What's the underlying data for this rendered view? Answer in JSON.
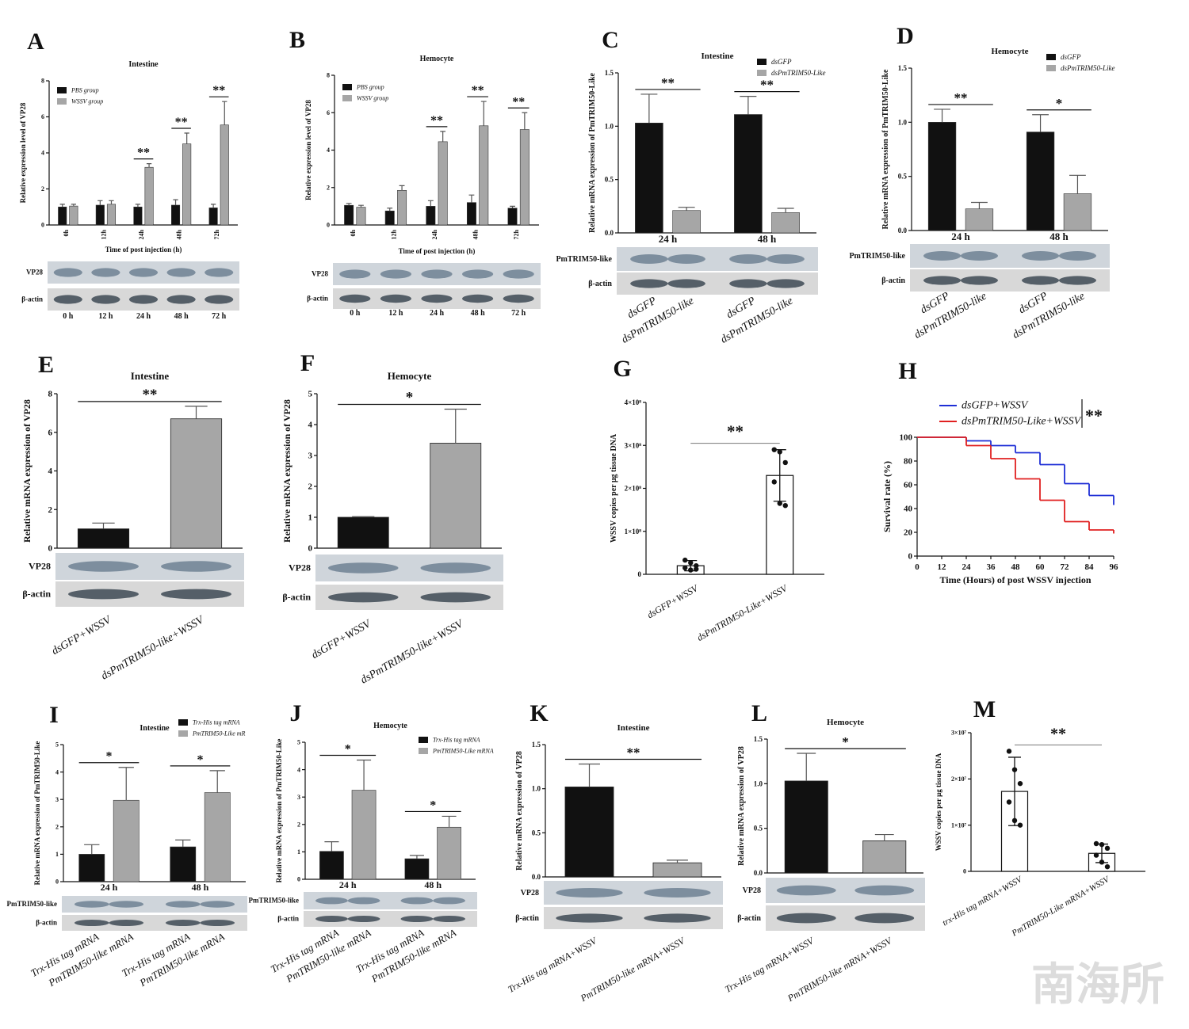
{
  "watermark": "南海所",
  "chart_data": [
    {
      "type": "bar",
      "panel": "A",
      "title": "Intestine",
      "y_label": "Relative expression level of VP28",
      "x_label": "Time of post injection (h)",
      "categories": [
        "0h",
        "12h",
        "24h",
        "48h",
        "72h"
      ],
      "series": [
        {
          "name": "PBS group",
          "color": "#111111",
          "values": [
            1.0,
            1.1,
            1.0,
            1.1,
            0.95
          ],
          "errors": [
            0.15,
            0.25,
            0.15,
            0.3,
            0.2
          ]
        },
        {
          "name": "WSSV group",
          "color": "#a6a6a6",
          "values": [
            1.05,
            1.15,
            3.2,
            4.5,
            5.55
          ],
          "errors": [
            0.1,
            0.2,
            0.2,
            0.6,
            1.3
          ]
        }
      ],
      "significance": [
        null,
        null,
        "**",
        "**",
        "**"
      ],
      "ylim": [
        0,
        8
      ],
      "yticks": [
        0,
        2,
        4,
        6,
        8
      ],
      "blot": {
        "labels": [
          "VP28",
          "β-actin"
        ],
        "lanes": [
          "0 h",
          "12 h",
          "24 h",
          "48 h",
          "72 h"
        ]
      }
    },
    {
      "type": "bar",
      "panel": "B",
      "title": "Hemocyte",
      "y_label": "Relative expression level of VP28",
      "x_label": "Time of post injection (h)",
      "categories": [
        "0h",
        "12h",
        "24h",
        "48h",
        "72h"
      ],
      "series": [
        {
          "name": "PBS group",
          "color": "#111111",
          "values": [
            1.05,
            0.75,
            1.0,
            1.2,
            0.9
          ],
          "errors": [
            0.1,
            0.15,
            0.3,
            0.4,
            0.1
          ]
        },
        {
          "name": "WSSV group",
          "color": "#a6a6a6",
          "values": [
            0.95,
            1.85,
            4.45,
            5.3,
            5.1
          ],
          "errors": [
            0.1,
            0.25,
            0.55,
            1.3,
            0.9
          ]
        }
      ],
      "significance": [
        null,
        null,
        "**",
        "**",
        "**"
      ],
      "ylim": [
        0,
        8
      ],
      "yticks": [
        0,
        2,
        4,
        6,
        8
      ],
      "blot": {
        "labels": [
          "VP28",
          "β-actin"
        ],
        "lanes": [
          "0 h",
          "12 h",
          "24 h",
          "48 h",
          "72 h"
        ]
      }
    },
    {
      "type": "bar",
      "panel": "C",
      "title": "Intestine",
      "y_label": "Relative mRNA expression of PmTRIM50-Like",
      "categories": [
        "24 h",
        "48 h"
      ],
      "series": [
        {
          "name": "dsGFP",
          "color": "#111111",
          "values": [
            1.03,
            1.11
          ],
          "errors": [
            0.27,
            0.17
          ]
        },
        {
          "name": "dsPmTRIM50-Like",
          "color": "#a6a6a6",
          "values": [
            0.21,
            0.19
          ],
          "errors": [
            0.03,
            0.04
          ]
        }
      ],
      "significance": [
        "**",
        "**"
      ],
      "ylim": [
        0,
        1.5
      ],
      "yticks": [
        {
          "value": 0,
          "label": "0.0"
        },
        0.5,
        {
          "value": 1,
          "label": "1.0"
        },
        1.5
      ],
      "blot": {
        "labels": [
          "PmTRIM50-like",
          "β-actin"
        ],
        "lanes": [
          "dsGFP",
          "dsPmTRIM50-like",
          "dsGFP",
          "dsPmTRIM50-like"
        ]
      }
    },
    {
      "type": "bar",
      "panel": "D",
      "title": "Hemocyte",
      "y_label": "Relative mRNA expression of PmTRIM50-Like",
      "categories": [
        "24 h",
        "48 h"
      ],
      "series": [
        {
          "name": "dsGFP",
          "color": "#111111",
          "values": [
            1.0,
            0.91
          ],
          "errors": [
            0.12,
            0.16
          ]
        },
        {
          "name": "dsPmTRIM50-Like",
          "color": "#a6a6a6",
          "values": [
            0.2,
            0.34
          ],
          "errors": [
            0.06,
            0.17
          ]
        }
      ],
      "significance": [
        "**",
        "*"
      ],
      "ylim": [
        0,
        1.5
      ],
      "yticks": [
        {
          "value": 0,
          "label": "0.0"
        },
        0.5,
        {
          "value": 1,
          "label": "1.0"
        },
        1.5
      ],
      "blot": {
        "labels": [
          "PmTRIM50-like",
          "β-actin"
        ],
        "lanes": [
          "dsGFP",
          "dsPmTRIM50-like",
          "dsGFP",
          "dsPmTRIM50-like"
        ]
      }
    },
    {
      "type": "bar",
      "panel": "E",
      "title": "Intestine",
      "y_label": "Relative mRNA expression of VP28",
      "categories": [
        "dsGFP+WSSV",
        "dsPmTRIM50-like+WSSV"
      ],
      "values": [
        1.0,
        6.7
      ],
      "errors": [
        0.3,
        0.65
      ],
      "colors": [
        "#111111",
        "#a6a6a6"
      ],
      "significance": "**",
      "ylim": [
        0,
        8
      ],
      "yticks": [
        0,
        2,
        4,
        6,
        8
      ],
      "blot": {
        "labels": [
          "VP28",
          "β-actin"
        ]
      }
    },
    {
      "type": "bar",
      "panel": "F",
      "title": "Hemocyte",
      "y_label": "Relative mRNA expression of VP28",
      "categories": [
        "dsGFP+WSSV",
        "dsPmTRIM50-like+WSSV"
      ],
      "values": [
        1.0,
        3.4
      ],
      "errors": [
        0.02,
        1.1
      ],
      "colors": [
        "#111111",
        "#a6a6a6"
      ],
      "significance": "*",
      "ylim": [
        0,
        5
      ],
      "yticks": [
        0,
        1,
        2,
        3,
        4,
        5
      ],
      "blot": {
        "labels": [
          "VP28",
          "β-actin"
        ]
      }
    },
    {
      "type": "scatter",
      "panel": "G",
      "y_label": "WSSV copies per μg tissue DNA",
      "categories": [
        "dsGFP+WSSV",
        "dsPmTRIM50-Like+WSSV"
      ],
      "values": [
        20000000,
        230000000
      ],
      "errors": [
        12000000,
        60000000
      ],
      "points": [
        [
          33000000,
          27000000,
          20000000,
          15000000,
          10000000,
          12000000
        ],
        [
          290000000,
          285000000,
          260000000,
          215000000,
          165000000,
          160000000
        ]
      ],
      "significance": "**",
      "ylim": [
        0,
        400000000
      ],
      "yticks": [
        0,
        {
          "value": 100000000,
          "label": "1×10⁸"
        },
        {
          "value": 200000000,
          "label": "2×10⁸"
        },
        {
          "value": 300000000,
          "label": "3×10⁸"
        },
        {
          "value": 400000000,
          "label": "4×10⁸"
        }
      ]
    },
    {
      "type": "line",
      "panel": "H",
      "y_label": "Survival rate (%)",
      "x_label": "Time (Hours) of post WSSV injection",
      "x": [
        0,
        24,
        36,
        48,
        60,
        72,
        84,
        96
      ],
      "series": [
        {
          "name": "dsGFP+WSSV",
          "color": "#1f2fd6",
          "values": [
            100,
            97,
            93,
            87,
            77,
            61,
            51,
            43
          ]
        },
        {
          "name": "dsPmTRIM50-Like+WSSV",
          "color": "#e02020",
          "values": [
            100,
            93,
            82,
            65,
            47,
            29,
            22,
            19
          ]
        }
      ],
      "significance": "**",
      "xlim": [
        0,
        96
      ],
      "xticks": [
        0,
        12,
        24,
        36,
        48,
        60,
        72,
        84,
        96
      ],
      "ylim": [
        0,
        100
      ],
      "yticks": [
        0,
        20,
        40,
        60,
        80,
        100
      ]
    },
    {
      "type": "bar",
      "panel": "I",
      "title": "Intestine",
      "y_label": "Relative mRNA expression of PmTRIM50-Like",
      "categories": [
        "24 h",
        "48 h"
      ],
      "series": [
        {
          "name": "Trx-His tag mRNA",
          "color": "#111111",
          "values": [
            1.0,
            1.27
          ],
          "errors": [
            0.35,
            0.25
          ]
        },
        {
          "name": "PmTRIM50-Like mR",
          "color": "#a6a6a6",
          "values": [
            2.97,
            3.25
          ],
          "errors": [
            1.2,
            0.8
          ]
        }
      ],
      "significance": [
        "*",
        "*"
      ],
      "ylim": [
        0,
        5
      ],
      "yticks": [
        0,
        1,
        2,
        3,
        4,
        5
      ],
      "blot": {
        "labels": [
          "PmTRIM50-like",
          "β-actin"
        ],
        "lanes": [
          "Trx-His tag mRNA",
          "PmTRIM50-like mRNA",
          "Trx-His tag mRNA",
          "PmTRIM50-like mRNA"
        ]
      }
    },
    {
      "type": "bar",
      "panel": "J",
      "title": "Hemocyte",
      "y_label": "Relative mRNA expression of PmTRIM50-Like",
      "categories": [
        "24 h",
        "48 h"
      ],
      "series": [
        {
          "name": "Trx-His tag mRNA",
          "color": "#111111",
          "values": [
            1.02,
            0.75
          ],
          "errors": [
            0.35,
            0.12
          ]
        },
        {
          "name": "PmTRIM50-Like mRNA",
          "color": "#a6a6a6",
          "values": [
            3.25,
            1.9
          ],
          "errors": [
            1.1,
            0.4
          ]
        }
      ],
      "significance": [
        "*",
        "*"
      ],
      "ylim": [
        0,
        5
      ],
      "yticks": [
        0,
        1,
        2,
        3,
        4,
        5
      ],
      "blot": {
        "labels": [
          "PmTRIM50-like",
          "β-actin"
        ],
        "lanes": [
          "Trx-His tag mRNA",
          "PmTRIM50-like mRNA",
          "Trx-His tag mRNA",
          "PmTRIM50-like mRNA"
        ]
      }
    },
    {
      "type": "bar",
      "panel": "K",
      "title": "Intestine",
      "y_label": "Relative mRNA expression of VP28",
      "categories": [
        "Trx-His tag mRNA+WSSV",
        "PmTRIM50-like mRNA+WSSV"
      ],
      "values": [
        1.02,
        0.16
      ],
      "errors": [
        0.26,
        0.03
      ],
      "colors": [
        "#111111",
        "#a6a6a6"
      ],
      "significance": "**",
      "ylim": [
        0,
        1.5
      ],
      "yticks": [
        {
          "value": 0,
          "label": "0.0"
        },
        0.5,
        {
          "value": 1,
          "label": "1.0"
        },
        1.5
      ],
      "blot": {
        "labels": [
          "VP28",
          "β-actin"
        ]
      }
    },
    {
      "type": "bar",
      "panel": "L",
      "title": "Hemocyte",
      "y_label": "Relative mRNA expression of VP28",
      "categories": [
        "Trx-His tag mRNA+WSSV",
        "PmTRIM50-like mRNA+WSSV"
      ],
      "values": [
        1.03,
        0.36
      ],
      "errors": [
        0.31,
        0.07
      ],
      "colors": [
        "#111111",
        "#a6a6a6"
      ],
      "significance": "*",
      "ylim": [
        0,
        1.5
      ],
      "yticks": [
        {
          "value": 0,
          "label": "0.0"
        },
        0.5,
        {
          "value": 1,
          "label": "1.0"
        },
        1.5
      ],
      "blot": {
        "labels": [
          "VP28",
          "β-actin"
        ]
      }
    },
    {
      "type": "scatter",
      "panel": "M",
      "y_label": "WSSV copies per μg tissue DNA",
      "categories": [
        "trx-His tag mRNA+WSSV",
        "PmTRIM50-Like mRNA+WSSV"
      ],
      "values": [
        17300000,
        3900000
      ],
      "errors": [
        7400000,
        2000000
      ],
      "points": [
        [
          26000000,
          22000000,
          19000000,
          15000000,
          11000000,
          10000000
        ],
        [
          6000000,
          5800000,
          5000000,
          3500000,
          2000000,
          1000000
        ]
      ],
      "significance": "**",
      "ylim": [
        0,
        30000000
      ],
      "yticks": [
        0,
        {
          "value": 10000000,
          "label": "1×10⁷"
        },
        {
          "value": 20000000,
          "label": "2×10⁷"
        },
        {
          "value": 30000000,
          "label": "3×10⁷"
        }
      ]
    }
  ]
}
